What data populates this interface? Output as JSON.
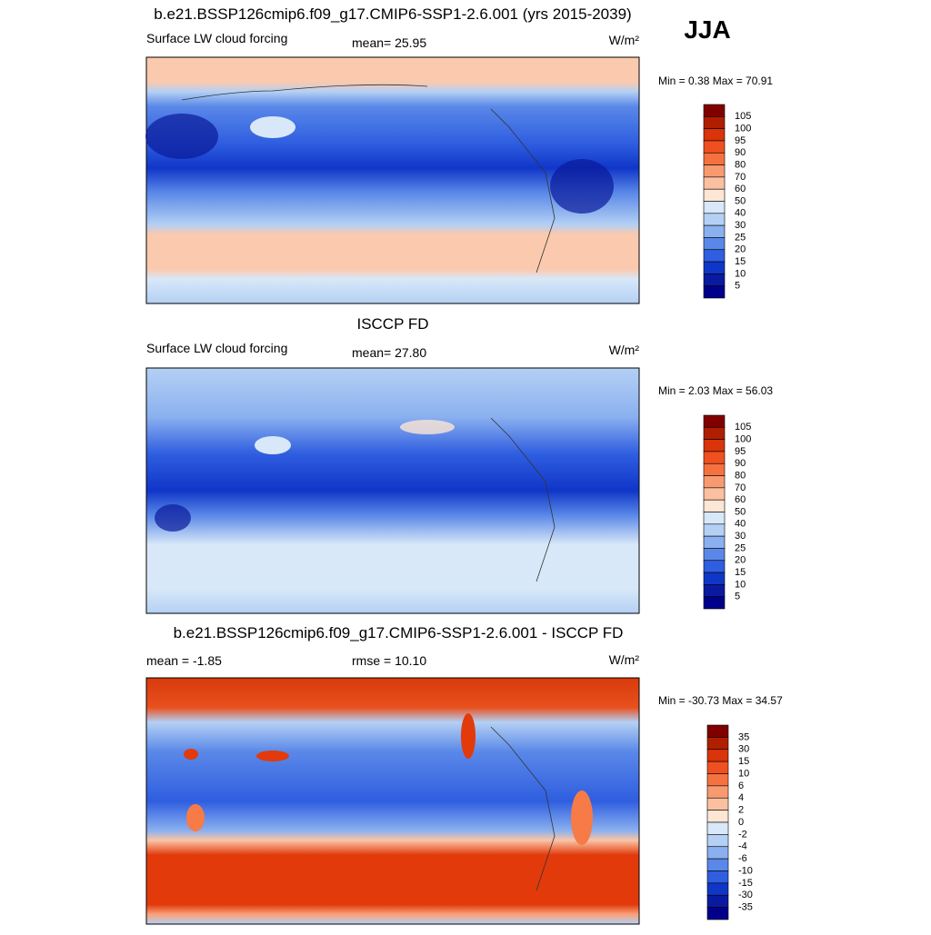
{
  "title": "b.e21.BSSP126cmip6.f09_g17.CMIP6-SSP1-2.6.001 (yrs 2015-2039)",
  "season": "JJA",
  "panels": [
    {
      "variable": "Surface LW cloud forcing",
      "stat": "mean=  25.95",
      "units": "W/m²",
      "range": "Min =   0.38 Max =  70.91",
      "colorbar": [
        "105",
        "100",
        "95",
        "90",
        "80",
        "70",
        "60",
        "50",
        "40",
        "30",
        "25",
        "20",
        "15",
        "10",
        "5"
      ]
    },
    {
      "title": "ISCCP FD",
      "variable": "Surface LW cloud forcing",
      "stat": "mean=  27.80",
      "units": "W/m²",
      "range": "Min =   2.03 Max =  56.03",
      "colorbar": [
        "105",
        "100",
        "95",
        "90",
        "80",
        "70",
        "60",
        "50",
        "40",
        "30",
        "25",
        "20",
        "15",
        "10",
        "5"
      ]
    },
    {
      "title": "b.e21.BSSP126cmip6.f09_g17.CMIP6-SSP1-2.6.001 - ISCCP FD",
      "variable": "mean =  -1.85",
      "stat": "rmse =  10.10",
      "units": "W/m²",
      "range": "Min = -30.73 Max =  34.57",
      "colorbar": [
        "35",
        "30",
        "15",
        "10",
        "6",
        "4",
        "2",
        "0",
        "-2",
        "-4",
        "-6",
        "-10",
        "-15",
        "-30",
        "-35"
      ]
    }
  ]
}
